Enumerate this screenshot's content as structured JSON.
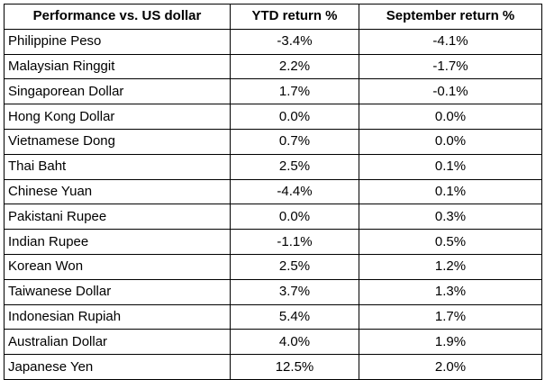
{
  "chart_data": {
    "type": "table",
    "columns": [
      "Performance vs. US dollar",
      "YTD return %",
      "September return %"
    ],
    "rows": [
      [
        "Philippine Peso",
        "-3.4%",
        "-4.1%"
      ],
      [
        "Malaysian Ringgit",
        "2.2%",
        "-1.7%"
      ],
      [
        "Singaporean Dollar",
        "1.7%",
        "-0.1%"
      ],
      [
        "Hong Kong Dollar",
        "0.0%",
        "0.0%"
      ],
      [
        "Vietnamese Dong",
        "0.7%",
        "0.0%"
      ],
      [
        "Thai Baht",
        "2.5%",
        "0.1%"
      ],
      [
        "Chinese Yuan",
        "-4.4%",
        "0.1%"
      ],
      [
        "Pakistani Rupee",
        "0.0%",
        "0.3%"
      ],
      [
        "Indian Rupee",
        "-1.1%",
        "0.5%"
      ],
      [
        "Korean Won",
        "2.5%",
        "1.2%"
      ],
      [
        "Taiwanese Dollar",
        "3.7%",
        "1.3%"
      ],
      [
        "Indonesian Rupiah",
        "5.4%",
        "1.7%"
      ],
      [
        "Australian Dollar",
        "4.0%",
        "1.9%"
      ],
      [
        "Japanese Yen",
        "12.5%",
        "2.0%"
      ]
    ]
  }
}
